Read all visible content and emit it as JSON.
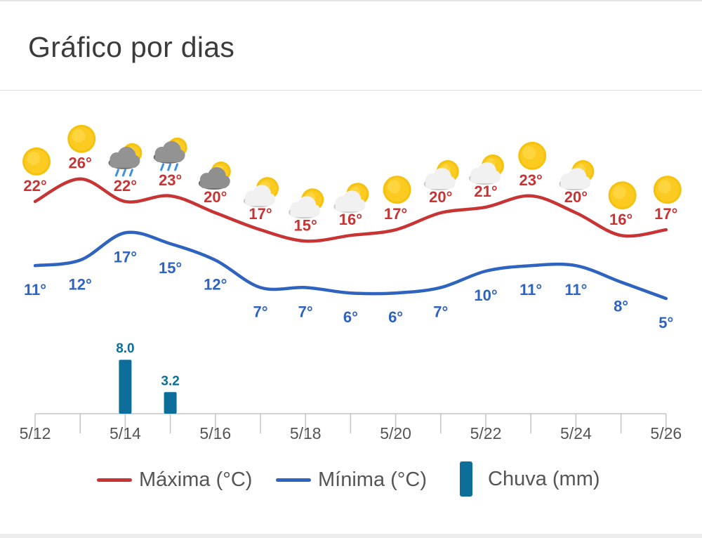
{
  "title": "Gráfico por dias",
  "colors": {
    "max": "#c83333",
    "min": "#2e63bf",
    "rain": "#0d6e9a",
    "axis": "#c4c4c4",
    "tick_text": "#555555"
  },
  "chart_data": {
    "type": "line",
    "x": [
      "5/12",
      "5/13",
      "5/14",
      "5/15",
      "5/16",
      "5/17",
      "5/18",
      "5/19",
      "5/20",
      "5/21",
      "5/22",
      "5/23",
      "5/24",
      "5/25",
      "5/26"
    ],
    "tick_labels": [
      "5/12",
      "5/14",
      "5/16",
      "5/18",
      "5/20",
      "5/22",
      "5/24",
      "5/26"
    ],
    "series": [
      {
        "name": "Máxima (°C)",
        "kind": "line",
        "values": [
          22,
          26,
          22,
          23,
          20,
          17,
          15,
          16,
          17,
          20,
          21,
          23,
          20,
          16,
          17
        ],
        "labels": [
          "22°",
          "26°",
          "22°",
          "23°",
          "20°",
          "17°",
          "15°",
          "16°",
          "17°",
          "20°",
          "21°",
          "23°",
          "20°",
          "16°",
          "17°"
        ]
      },
      {
        "name": "Mínima (°C)",
        "kind": "line",
        "values": [
          11,
          12,
          17,
          15,
          12,
          7,
          7,
          6,
          6,
          7,
          10,
          11,
          11,
          8,
          5
        ],
        "labels": [
          "11°",
          "12°",
          "17°",
          "15°",
          "12°",
          "7°",
          "7°",
          "6°",
          "6°",
          "7°",
          "10°",
          "11°",
          "11°",
          "8°",
          "5°"
        ]
      },
      {
        "name": "Chuva (mm)",
        "kind": "bar",
        "values": [
          0,
          0,
          8.0,
          3.2,
          0,
          0,
          0,
          0,
          0,
          0,
          0,
          0,
          0,
          0,
          0
        ],
        "labels": [
          "",
          "",
          "8.0",
          "3.2",
          "",
          "",
          "",
          "",
          "",
          "",
          "",
          "",
          "",
          "",
          ""
        ]
      }
    ],
    "icons": [
      "sun-icon",
      "sun-icon",
      "rain-cloud-icon",
      "rain-cloud-icon",
      "cloud-icon",
      "partly-cloudy-icon",
      "partly-cloudy-icon",
      "partly-cloudy-icon",
      "sun-icon",
      "partly-cloudy-icon",
      "partly-cloudy-icon",
      "sun-icon",
      "partly-cloudy-icon",
      "sun-icon",
      "sun-icon"
    ],
    "legend_position": "bottom",
    "grid": false
  }
}
